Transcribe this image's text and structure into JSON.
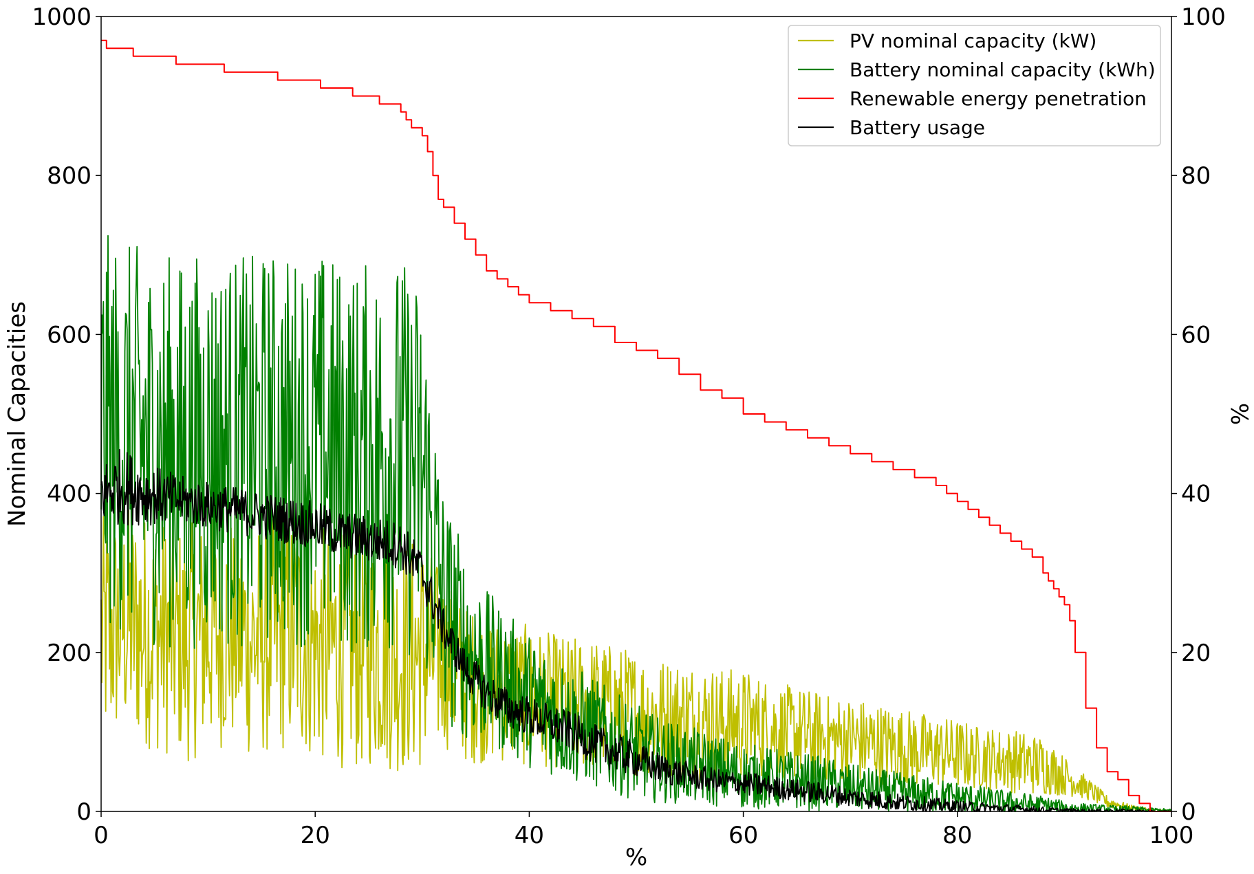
{
  "chart_data": {
    "type": "line",
    "xlabel": "%",
    "ylabel": "Nominal Capacities",
    "y2label": "%",
    "xlim": [
      0,
      100
    ],
    "ylim": [
      0,
      1000
    ],
    "y2lim": [
      0,
      100
    ],
    "x_ticks": [
      "0",
      "20",
      "40",
      "60",
      "80",
      "100"
    ],
    "y_ticks": [
      "0",
      "200",
      "400",
      "600",
      "800",
      "1000"
    ],
    "y2_ticks": [
      "0",
      "20",
      "40",
      "60",
      "80",
      "100"
    ],
    "grid": false,
    "legend_position": "top-right",
    "legend": [
      {
        "name": "PV nominal capacity (kW)",
        "color": "#bfbf00"
      },
      {
        "name": "Battery nominal capacity (kWh)",
        "color": "#008000"
      },
      {
        "name": "Renewable energy penetration",
        "color": "#ff0000"
      },
      {
        "name": "Battery usage",
        "color": "#000000"
      }
    ],
    "series": [
      {
        "name": "PV nominal capacity (kW)",
        "axis": "left",
        "color": "#bfbf00",
        "x": [
          0,
          2,
          4,
          6,
          8,
          10,
          12,
          14,
          16,
          18,
          20,
          22,
          24,
          26,
          28,
          30,
          32,
          34,
          36,
          38,
          40,
          42,
          44,
          46,
          48,
          50,
          52,
          54,
          56,
          58,
          60,
          62,
          64,
          66,
          68,
          70,
          72,
          74,
          76,
          78,
          80,
          82,
          84,
          86,
          88,
          90,
          92,
          94,
          96,
          98,
          100
        ],
        "y": [
          220,
          240,
          230,
          220,
          210,
          225,
          230,
          215,
          220,
          225,
          210,
          205,
          200,
          205,
          195,
          200,
          190,
          160,
          155,
          150,
          145,
          140,
          135,
          135,
          130,
          125,
          120,
          118,
          115,
          112,
          110,
          105,
          100,
          95,
          92,
          90,
          85,
          82,
          78,
          75,
          72,
          68,
          65,
          62,
          58,
          45,
          30,
          12,
          5,
          2,
          1
        ],
        "band": [
          150,
          150,
          150,
          150,
          150,
          150,
          150,
          150,
          150,
          150,
          150,
          150,
          150,
          150,
          150,
          150,
          110,
          100,
          95,
          90,
          90,
          85,
          85,
          85,
          80,
          80,
          75,
          75,
          75,
          70,
          70,
          65,
          60,
          60,
          55,
          55,
          55,
          50,
          50,
          45,
          45,
          40,
          40,
          40,
          38,
          25,
          15,
          8,
          4,
          2,
          1
        ]
      },
      {
        "name": "Battery nominal capacity (kWh)",
        "axis": "left",
        "color": "#008000",
        "x": [
          0,
          2,
          4,
          6,
          8,
          10,
          12,
          14,
          16,
          18,
          20,
          22,
          24,
          26,
          28,
          30,
          32,
          34,
          36,
          38,
          40,
          42,
          44,
          46,
          48,
          50,
          52,
          54,
          56,
          58,
          60,
          62,
          64,
          66,
          68,
          70,
          72,
          74,
          76,
          78,
          80,
          82,
          84,
          86,
          88,
          90,
          92,
          94,
          96,
          98,
          100
        ],
        "y": [
          480,
          470,
          460,
          455,
          450,
          460,
          455,
          450,
          460,
          455,
          460,
          450,
          440,
          450,
          450,
          420,
          260,
          210,
          180,
          160,
          140,
          125,
          110,
          100,
          85,
          75,
          65,
          60,
          55,
          50,
          45,
          42,
          40,
          37,
          34,
          30,
          27,
          25,
          22,
          20,
          18,
          15,
          12,
          10,
          8,
          5,
          4,
          3,
          3,
          2,
          1
        ],
        "band": [
          250,
          250,
          250,
          250,
          250,
          250,
          250,
          250,
          250,
          250,
          250,
          250,
          250,
          250,
          250,
          250,
          150,
          120,
          100,
          90,
          85,
          80,
          75,
          70,
          65,
          60,
          55,
          50,
          48,
          45,
          42,
          40,
          38,
          36,
          34,
          30,
          28,
          26,
          24,
          22,
          20,
          18,
          16,
          14,
          12,
          8,
          6,
          5,
          4,
          3,
          2
        ]
      },
      {
        "name": "Renewable energy penetration",
        "axis": "right",
        "color": "#ff0000",
        "step": true,
        "x": [
          0,
          0.5,
          3,
          7,
          11.5,
          16.5,
          20.5,
          23.5,
          26,
          28,
          28.5,
          29,
          30,
          30.5,
          31,
          31.5,
          32,
          33,
          34,
          35,
          36,
          37,
          38,
          39,
          40,
          42,
          44,
          46,
          48,
          50,
          52,
          54,
          56,
          58,
          60,
          62,
          64,
          66,
          68,
          70,
          72,
          74,
          76,
          78,
          79,
          80,
          81,
          82,
          83,
          84,
          85,
          86,
          87,
          88,
          88.5,
          89,
          89.5,
          90,
          90.5,
          91,
          92,
          93,
          94,
          95,
          96,
          97,
          98,
          99,
          100
        ],
        "y": [
          97,
          96,
          95,
          94,
          93,
          92,
          91,
          90,
          89,
          88,
          87,
          86,
          85,
          83,
          80,
          77,
          76,
          74,
          72,
          70,
          68,
          67,
          66,
          65,
          64,
          63,
          62,
          61,
          59,
          58,
          57,
          55,
          53,
          52,
          50,
          49,
          48,
          47,
          46,
          45,
          44,
          43,
          42,
          41,
          40,
          39,
          38,
          37,
          36,
          35,
          34,
          33,
          32,
          30,
          29,
          28,
          27,
          26,
          24,
          20,
          13,
          8,
          5,
          4,
          2,
          1,
          0,
          0,
          0
        ]
      },
      {
        "name": "Battery usage",
        "axis": "left",
        "color": "#000000",
        "x": [
          0,
          2,
          4,
          6,
          8,
          10,
          12,
          14,
          16,
          18,
          20,
          22,
          24,
          26,
          28,
          30,
          32,
          34,
          36,
          38,
          40,
          42,
          44,
          46,
          48,
          50,
          52,
          54,
          56,
          58,
          60,
          62,
          64,
          66,
          68,
          70,
          72,
          74,
          76,
          78,
          80,
          82,
          84,
          86,
          88,
          90,
          92,
          94,
          96,
          98,
          100
        ],
        "y": [
          400,
          410,
          400,
          395,
          390,
          385,
          380,
          375,
          370,
          365,
          360,
          350,
          345,
          340,
          335,
          300,
          230,
          180,
          150,
          130,
          120,
          110,
          100,
          85,
          75,
          65,
          55,
          48,
          42,
          38,
          35,
          32,
          28,
          25,
          22,
          18,
          15,
          12,
          10,
          8,
          6,
          5,
          4,
          3,
          2,
          1,
          1,
          1,
          1,
          0,
          0
        ],
        "band": [
          40,
          50,
          40,
          35,
          30,
          30,
          30,
          30,
          30,
          30,
          30,
          30,
          30,
          30,
          30,
          30,
          25,
          25,
          25,
          25,
          25,
          25,
          25,
          25,
          25,
          22,
          20,
          18,
          16,
          15,
          15,
          15,
          14,
          14,
          13,
          12,
          12,
          11,
          10,
          9,
          8,
          7,
          6,
          5,
          4,
          3,
          2,
          2,
          2,
          1,
          1
        ]
      }
    ]
  }
}
